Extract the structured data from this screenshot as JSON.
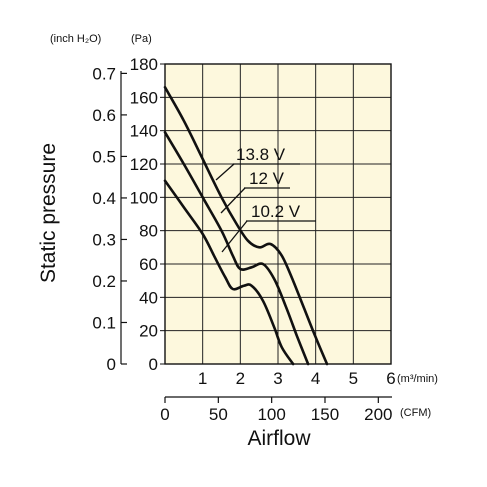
{
  "chart_data": {
    "type": "line",
    "ylabel": "Static pressure",
    "xlabel": "Airflow",
    "y_units_left": "(inch H₂O)",
    "y_units_right": "(Pa)",
    "x_units_top": "(m³/min)",
    "x_units_bottom": "(CFM)",
    "y_pa_ticks": [
      "0",
      "20",
      "40",
      "60",
      "80",
      "100",
      "120",
      "140",
      "160",
      "180"
    ],
    "y_pa_range": [
      0,
      180
    ],
    "y_inch_ticks": [
      "0",
      "0.1",
      "0.2",
      "0.3",
      "0.4",
      "0.5",
      "0.6",
      "0.7"
    ],
    "y_inch_values": [
      0,
      0.1,
      0.2,
      0.3,
      0.4,
      0.5,
      0.6,
      0.7
    ],
    "x_m3_ticks": [
      "1",
      "2",
      "3",
      "4",
      "5",
      "6"
    ],
    "x_m3_range": [
      0,
      6
    ],
    "x_cfm_ticks": [
      "0",
      "50",
      "100",
      "150",
      "200"
    ],
    "x_cfm_values": [
      0,
      50,
      100,
      150,
      200
    ],
    "grid": true,
    "plot_background": "#fdf8dd",
    "series": [
      {
        "name": "13.8 V",
        "x": [
          0,
          0.5,
          1.0,
          1.5,
          1.9,
          2.2,
          2.5,
          2.8,
          3.1,
          3.4,
          3.7,
          4.0,
          4.3
        ],
        "y": [
          166,
          146,
          123,
          100,
          84,
          74,
          70,
          72,
          65,
          50,
          33,
          16,
          0
        ]
      },
      {
        "name": "12 V",
        "x": [
          0,
          0.5,
          1.0,
          1.5,
          1.8,
          2.0,
          2.3,
          2.6,
          2.9,
          3.2,
          3.5,
          3.8
        ],
        "y": [
          139,
          120,
          100,
          80,
          65,
          57,
          58,
          60,
          51,
          35,
          17,
          0
        ]
      },
      {
        "name": "10.2 V",
        "x": [
          0,
          0.5,
          1.0,
          1.3,
          1.6,
          1.8,
          2.1,
          2.3,
          2.6,
          2.9,
          3.1,
          3.4
        ],
        "y": [
          110,
          94,
          78,
          65,
          52,
          45,
          47,
          47,
          38,
          22,
          10,
          0
        ]
      }
    ]
  }
}
